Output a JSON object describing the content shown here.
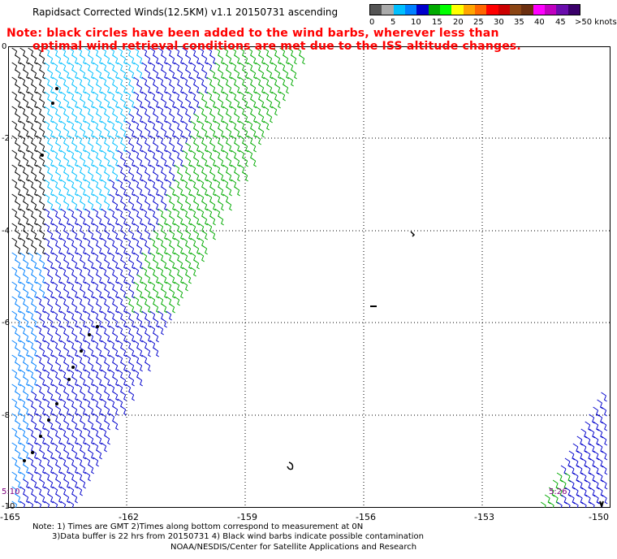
{
  "header": {
    "title": "Rapidsact Corrected Winds(12.5KM) v1.1 20150731 ascending",
    "note_line1": "Note: black circles have been added to the wind barbs, wherever less than",
    "note_line2": "optimal wind retrieval conditions are met due to the ISS altitude changes."
  },
  "legend": {
    "colors": [
      "#555555",
      "#aaaaaa",
      "#00bfff",
      "#0080ff",
      "#0000cc",
      "#00aa00",
      "#00ff00",
      "#ffff00",
      "#ffa500",
      "#ff6600",
      "#ff0000",
      "#cc0000",
      "#8b4513",
      "#6b2f0f",
      "#ff00ff",
      "#c000c0",
      "#6a0dad",
      "#3a006a"
    ],
    "labels": [
      "0",
      "5",
      "10",
      "15",
      "20",
      "25",
      "30",
      "35",
      "40",
      "45",
      ">50 knots"
    ]
  },
  "axes": {
    "y_ticks": [
      "0",
      "-2",
      "-4",
      "-6",
      "-8",
      "-10"
    ],
    "x_ticks": [
      "-165",
      "-162",
      "-159",
      "-156",
      "-153",
      "-150"
    ]
  },
  "time_labels": [
    "5:10",
    "5:26"
  ],
  "footer": {
    "line1": "Note: 1) Times are GMT 2)Times along bottom correspond to measurement at 0N",
    "line2": "3)Data buffer is 22 hrs from 20150731 4) Black wind barbs indicate possible contamination",
    "line3": "NOAA/NESDIS/Center for Satellite Applications and Research"
  }
}
